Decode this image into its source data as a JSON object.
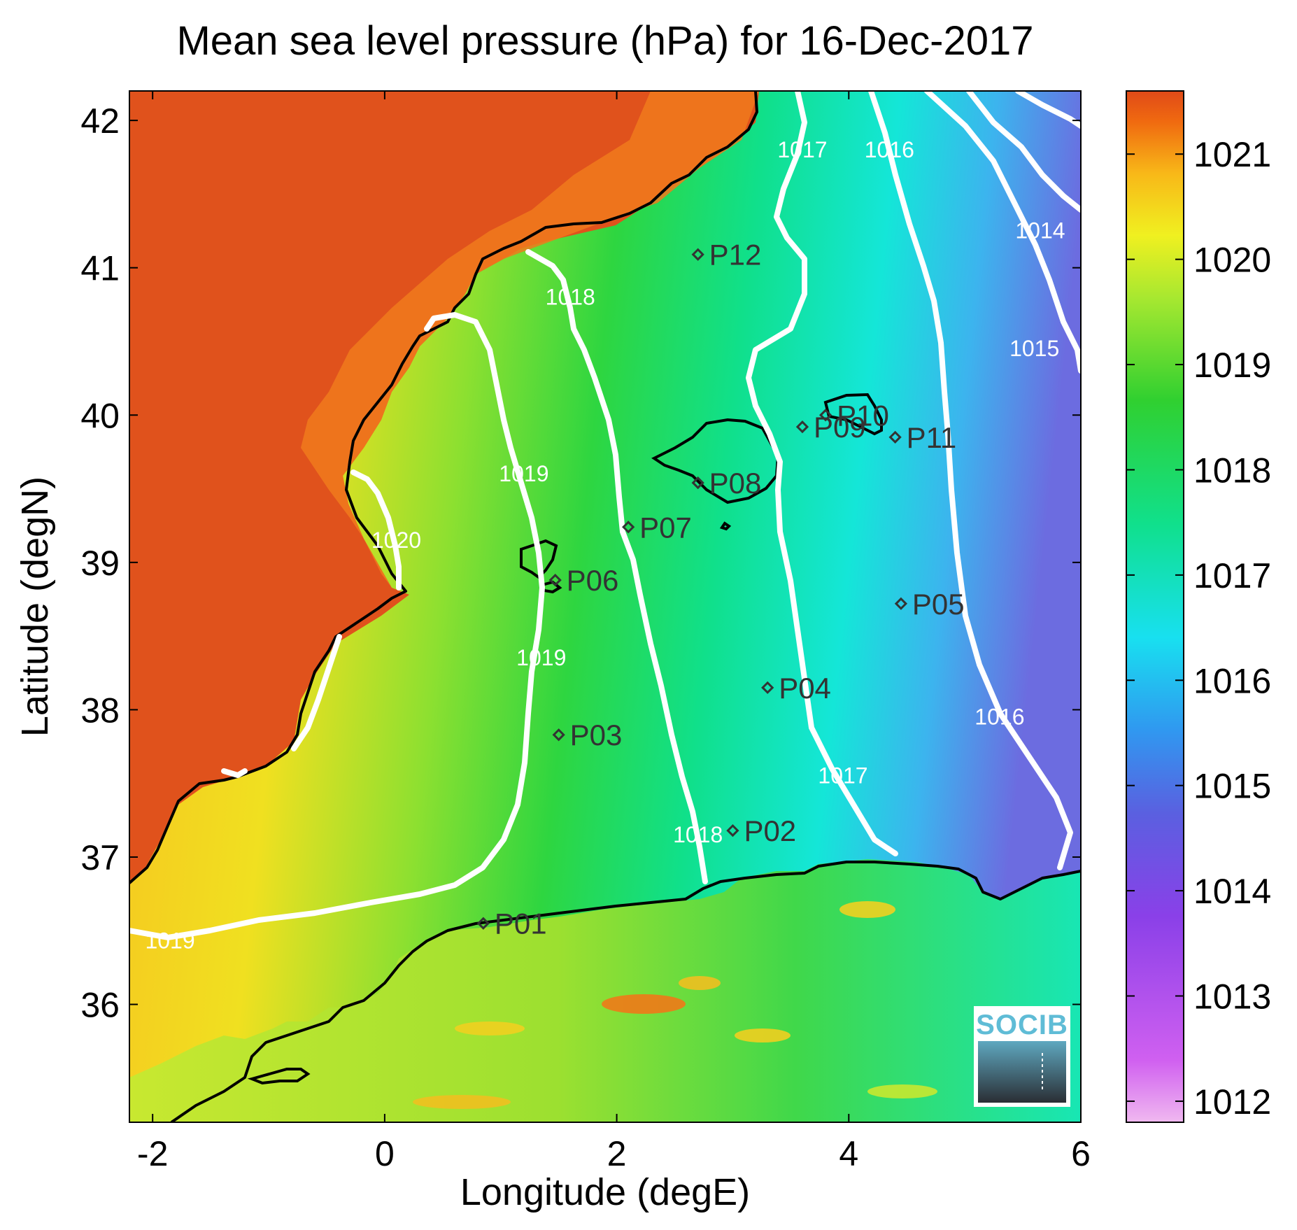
{
  "title": "Mean sea level pressure (hPa) for 16-Dec-2017",
  "chart_data": {
    "type": "heatmap",
    "title": "Mean sea level pressure (hPa) for 16-Dec-2017",
    "xlabel": "Longitude (degE)",
    "ylabel": "Latitude (degN)",
    "xlim": [
      -2.2,
      6
    ],
    "ylim": [
      35.2,
      42.2
    ],
    "x_ticks": [
      -2,
      0,
      2,
      4,
      6
    ],
    "y_ticks": [
      36,
      37,
      38,
      39,
      40,
      41,
      42
    ],
    "colorbar": {
      "range": [
        1011.8,
        1021.6
      ],
      "ticks": [
        1012,
        1013,
        1014,
        1015,
        1016,
        1017,
        1018,
        1019,
        1020,
        1021
      ]
    },
    "contour_levels": [
      1014,
      1015,
      1016,
      1017,
      1018,
      1019,
      1020
    ],
    "contour_labels": [
      {
        "text": "1014",
        "lon": 5.65,
        "lat": 41.2
      },
      {
        "text": "1015",
        "lon": 5.6,
        "lat": 40.4
      },
      {
        "text": "1016",
        "lon": 4.35,
        "lat": 41.75
      },
      {
        "text": "1016",
        "lon": 5.3,
        "lat": 37.9
      },
      {
        "text": "1017",
        "lon": 3.6,
        "lat": 41.75
      },
      {
        "text": "1017",
        "lon": 3.95,
        "lat": 37.5
      },
      {
        "text": "1018",
        "lon": 1.6,
        "lat": 40.75
      },
      {
        "text": "1018",
        "lon": 2.7,
        "lat": 37.1
      },
      {
        "text": "1019",
        "lon": 1.2,
        "lat": 39.55
      },
      {
        "text": "1019",
        "lon": 1.35,
        "lat": 38.3
      },
      {
        "text": "1019",
        "lon": -1.85,
        "lat": 36.38
      },
      {
        "text": "1020",
        "lon": 0.1,
        "lat": 39.1
      }
    ],
    "stations": [
      {
        "label": "P01",
        "lon": 0.85,
        "lat": 36.55
      },
      {
        "label": "P02",
        "lon": 3.0,
        "lat": 37.18
      },
      {
        "label": "P03",
        "lon": 1.5,
        "lat": 37.83
      },
      {
        "label": "P04",
        "lon": 3.3,
        "lat": 38.15
      },
      {
        "label": "P05",
        "lon": 4.45,
        "lat": 38.72
      },
      {
        "label": "P06",
        "lon": 1.47,
        "lat": 38.88
      },
      {
        "label": "P07",
        "lon": 2.1,
        "lat": 39.24
      },
      {
        "label": "P08",
        "lon": 2.7,
        "lat": 39.54
      },
      {
        "label": "P09",
        "lon": 3.6,
        "lat": 39.92
      },
      {
        "label": "P10",
        "lon": 3.8,
        "lat": 40.0
      },
      {
        "label": "P11",
        "lon": 4.4,
        "lat": 39.85
      },
      {
        "label": "P12",
        "lon": 2.7,
        "lat": 41.09
      }
    ]
  },
  "logo": {
    "text": "SOCIB"
  }
}
